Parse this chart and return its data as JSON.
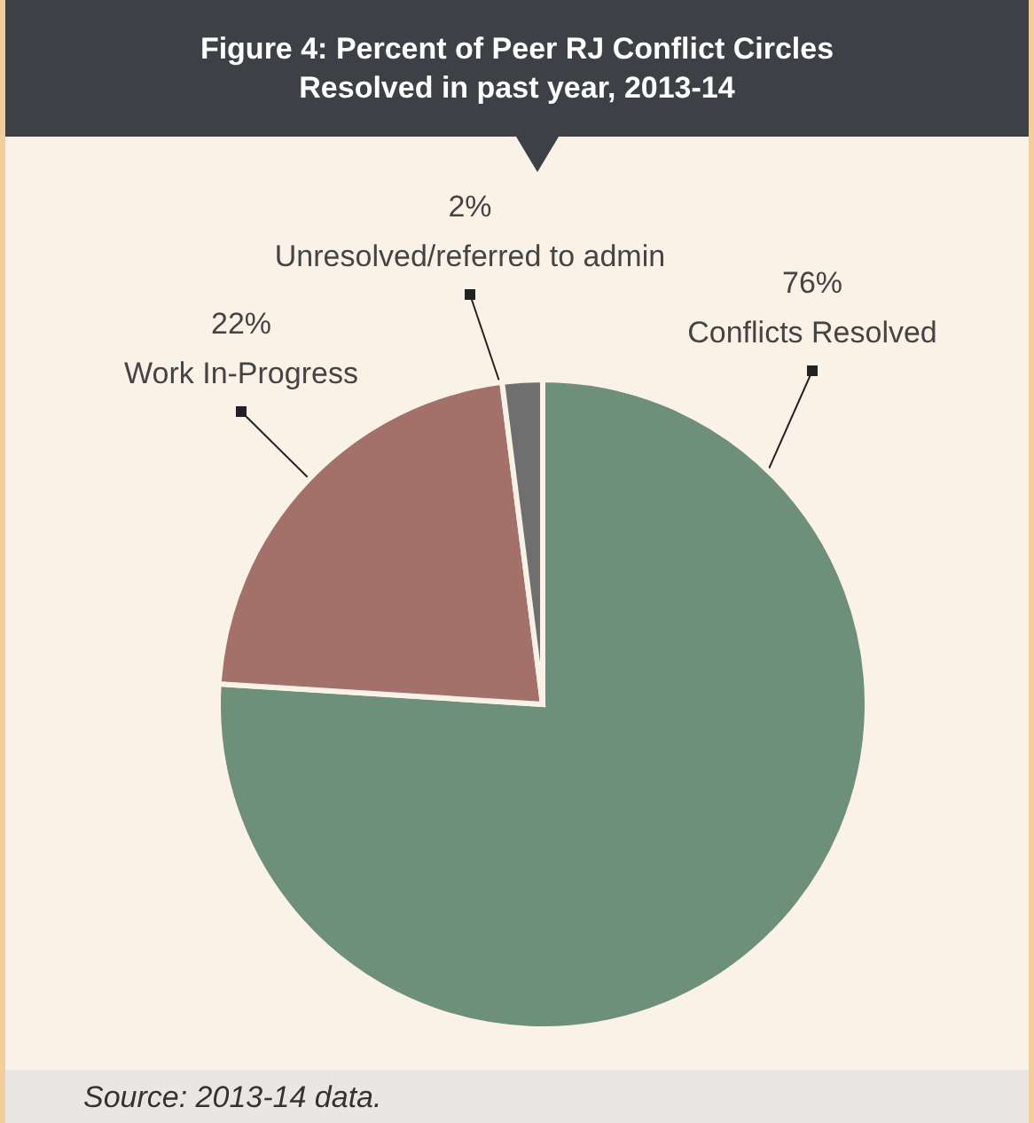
{
  "chart_data": {
    "type": "pie",
    "title": "Figure 4: Percent of Peer RJ Conflict Circles Resolved in past year, 2013-14",
    "categories": [
      "Conflicts Resolved",
      "Work In-Progress",
      "Unresolved/referred to admin"
    ],
    "values": [
      76,
      22,
      2
    ],
    "value_labels": [
      "76%",
      "22%",
      "2%"
    ],
    "colors": [
      "#6e8f7a",
      "#a4706a",
      "#6f6f6f"
    ],
    "annotations": [
      "Source: 2013-14 data."
    ]
  }
}
